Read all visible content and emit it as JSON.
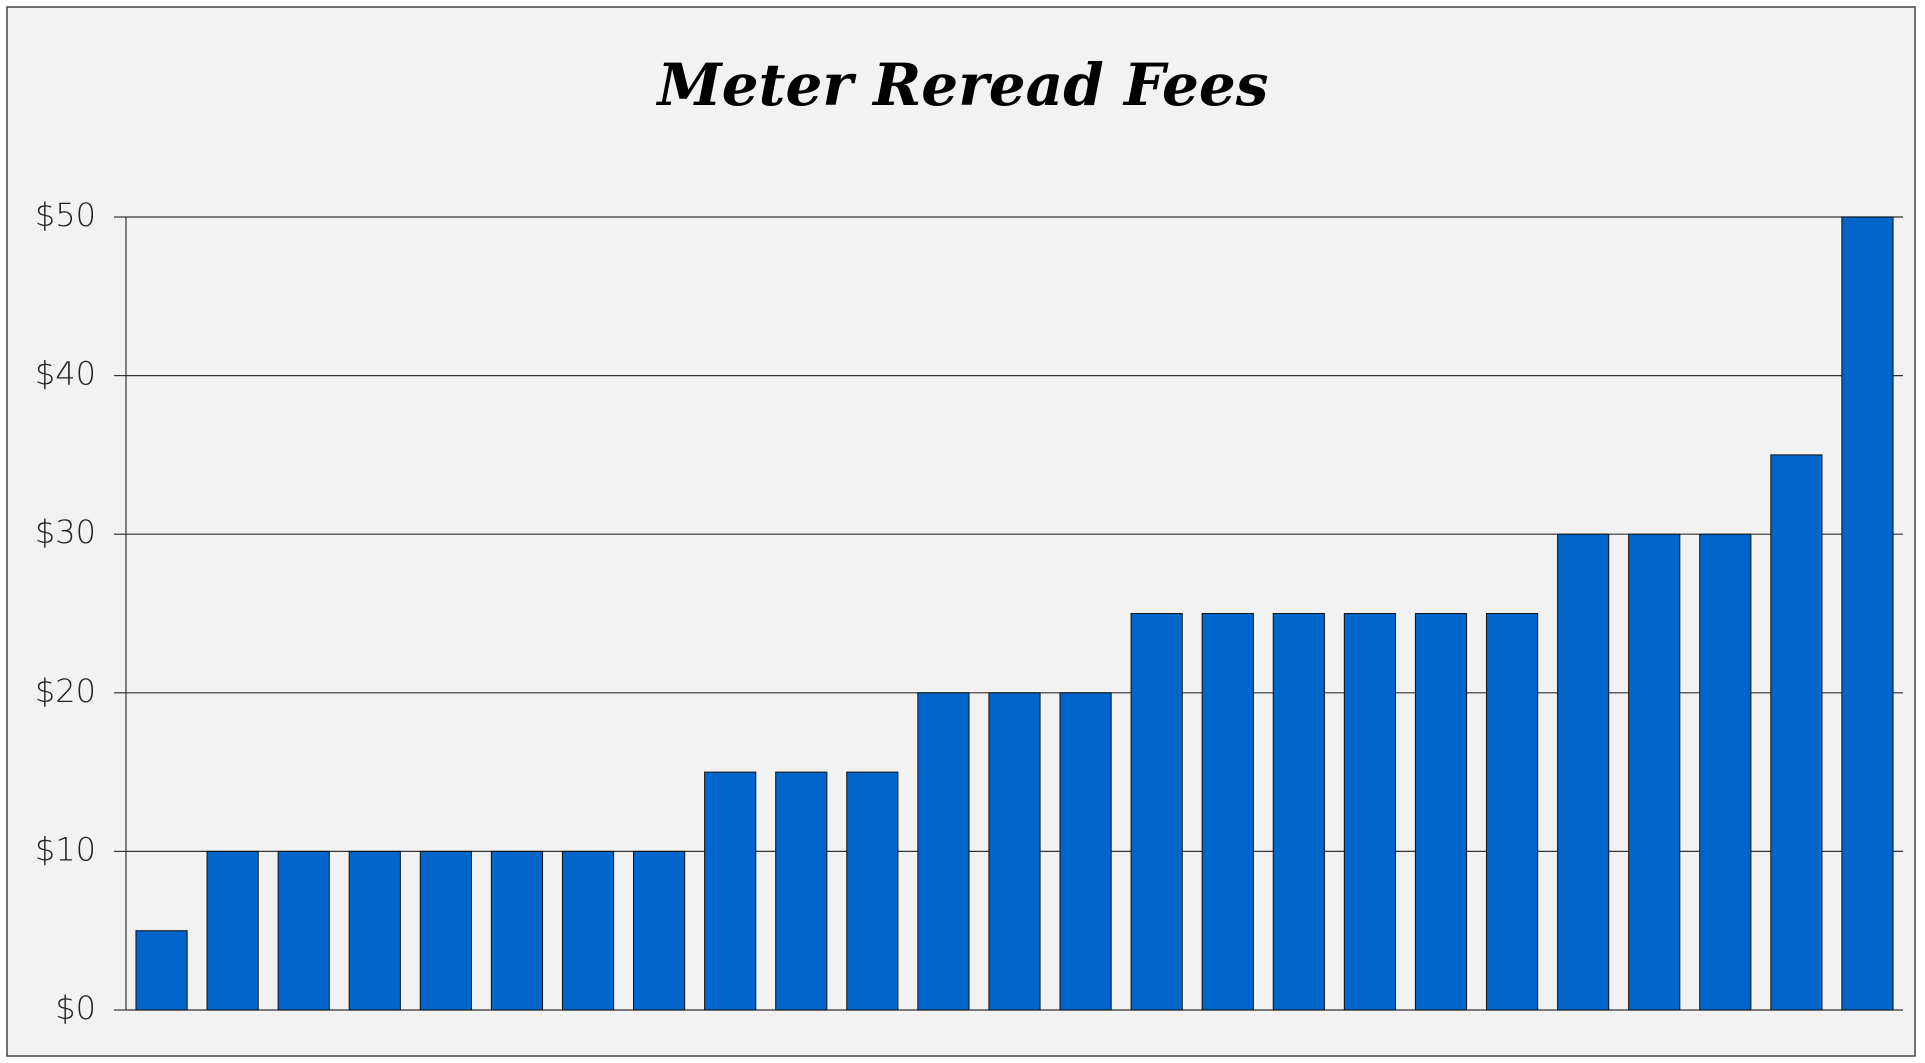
{
  "chart_data": {
    "type": "bar",
    "title": "Meter Reread Fees",
    "categories": [
      null,
      null,
      null,
      null,
      null,
      null,
      null,
      null,
      null,
      null,
      null,
      null,
      null,
      null,
      null,
      null,
      null,
      null,
      null,
      null,
      null,
      null,
      null,
      null,
      null
    ],
    "values": [
      5,
      10,
      10,
      10,
      10,
      10,
      10,
      10,
      15,
      15,
      15,
      20,
      20,
      20,
      25,
      25,
      25,
      25,
      25,
      25,
      30,
      30,
      30,
      35,
      50
    ],
    "color": "#0066cc",
    "ylim": [
      0,
      50
    ],
    "yticks": [
      {
        "value": 0,
        "label": "$0"
      },
      {
        "value": 10,
        "label": "$10"
      },
      {
        "value": 20,
        "label": "$20"
      },
      {
        "value": 30,
        "label": "$30"
      },
      {
        "value": 40,
        "label": "$40"
      },
      {
        "value": 50,
        "label": "$50"
      }
    ],
    "grid": true
  }
}
